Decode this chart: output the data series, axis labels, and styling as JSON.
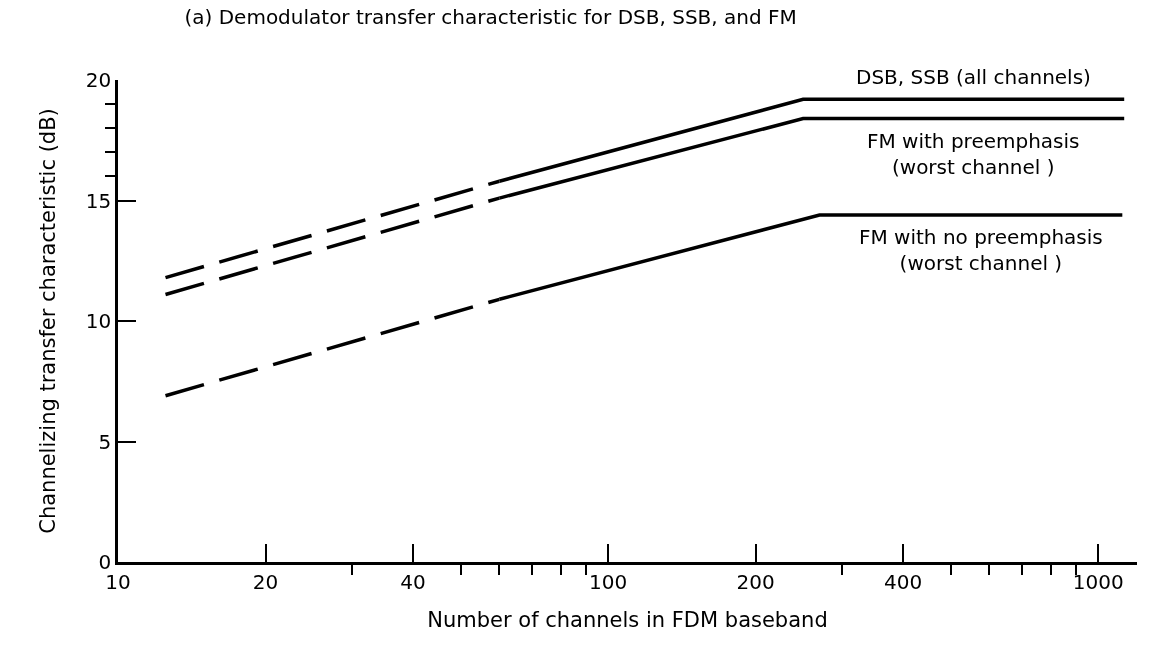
{
  "chart_data": {
    "type": "line",
    "title": "(a) Demodulator transfer characteristic for DSB, SSB, and FM",
    "xlabel": "Number of channels in FDM baseband",
    "ylabel": "Channelizing transfer characteristic (dB)",
    "log": "x",
    "xlim": [
      10,
      1200
    ],
    "ylim": [
      0,
      20
    ],
    "xticks": [
      10,
      20,
      {
        "value": 30,
        "label": null
      },
      40,
      {
        "value": 50,
        "label": null
      },
      {
        "value": 60,
        "label": null
      },
      {
        "value": 70,
        "label": null
      },
      {
        "value": 80,
        "label": null
      },
      {
        "value": 90,
        "label": null
      },
      100,
      200,
      {
        "value": 300,
        "label": null
      },
      400,
      {
        "value": 500,
        "label": null
      },
      {
        "value": 600,
        "label": null
      },
      {
        "value": 700,
        "label": null
      },
      {
        "value": 800,
        "label": null
      },
      {
        "value": 900,
        "label": null
      },
      1000
    ],
    "yticks": [
      0,
      5,
      10,
      15,
      {
        "value": 16,
        "label": null
      },
      {
        "value": 17,
        "label": null
      },
      {
        "value": 18,
        "label": null
      },
      {
        "value": 19,
        "label": null
      },
      20
    ],
    "grid": false,
    "legend": false,
    "marker": "none",
    "series": [
      {
        "color": "#000000",
        "line_style": "dashed",
        "x": [
          12.5,
          60
        ],
        "values": [
          11.8,
          15.8
        ]
      },
      {
        "name": "DSB, SSB (all channels)",
        "color": "#000000",
        "line_style": "solid",
        "x": [
          60,
          250,
          1130
        ],
        "values": [
          15.8,
          19.2,
          19.2
        ]
      },
      {
        "color": "#000000",
        "line_style": "dashed",
        "x": [
          12.5,
          60
        ],
        "values": [
          11.1,
          15.1
        ]
      },
      {
        "name": "FM with preemphasis\n(worst channel )",
        "color": "#000000",
        "line_style": "solid",
        "x": [
          60,
          250,
          1130
        ],
        "values": [
          15.1,
          18.4,
          18.4
        ]
      },
      {
        "color": "#000000",
        "line_style": "dashed",
        "x": [
          12.5,
          60
        ],
        "values": [
          6.9,
          10.9
        ]
      },
      {
        "name": "FM with no preemphasis\n(worst channel )",
        "color": "#000000",
        "line_style": "solid",
        "x": [
          60,
          270,
          1120
        ],
        "values": [
          10.9,
          14.4,
          14.4
        ]
      }
    ]
  }
}
